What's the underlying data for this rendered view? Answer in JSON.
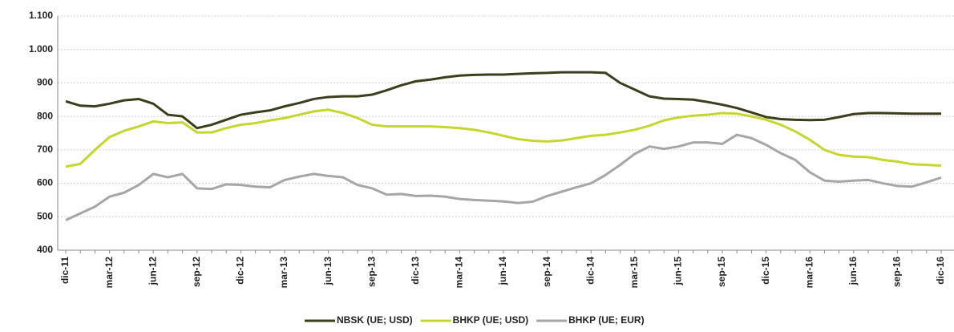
{
  "chart_data": {
    "type": "line",
    "categories": [
      "dic-11",
      null,
      null,
      "mar-12",
      null,
      null,
      "jun-12",
      null,
      null,
      "sep-12",
      null,
      null,
      "dic-12",
      null,
      null,
      "mar-13",
      null,
      null,
      "jun-13",
      null,
      null,
      "sep-13",
      null,
      null,
      "dic-13",
      null,
      null,
      "mar-14",
      null,
      null,
      "jun-14",
      null,
      null,
      "sep-14",
      null,
      null,
      "dic-14",
      null,
      null,
      "mar-15",
      null,
      null,
      "jun-15",
      null,
      null,
      "sep-15",
      null,
      null,
      "dic-15",
      null,
      null,
      "mar-16",
      null,
      null,
      "jun-16",
      null,
      null,
      "sep-16",
      null,
      null,
      "dic-16"
    ],
    "series": [
      {
        "name": "NBSK (UE; USD)",
        "color": "#3b3d1c",
        "values": [
          845,
          832,
          830,
          838,
          848,
          852,
          838,
          805,
          800,
          765,
          775,
          790,
          805,
          812,
          818,
          830,
          840,
          852,
          858,
          860,
          860,
          865,
          878,
          893,
          905,
          910,
          917,
          922,
          924,
          925,
          925,
          927,
          929,
          930,
          932,
          932,
          932,
          930,
          900,
          880,
          860,
          853,
          852,
          850,
          843,
          835,
          825,
          812,
          798,
          792,
          790,
          789,
          790,
          798,
          807,
          810,
          810,
          809,
          808,
          808,
          808
        ]
      },
      {
        "name": "BHKP (UE; USD)",
        "color": "#c5d62e",
        "values": [
          650,
          658,
          700,
          738,
          757,
          770,
          785,
          780,
          782,
          752,
          752,
          765,
          775,
          780,
          788,
          795,
          805,
          815,
          820,
          810,
          795,
          775,
          770,
          770,
          770,
          770,
          768,
          765,
          760,
          752,
          742,
          732,
          727,
          725,
          728,
          735,
          742,
          745,
          752,
          760,
          772,
          788,
          797,
          802,
          805,
          810,
          808,
          800,
          790,
          775,
          755,
          730,
          700,
          685,
          680,
          678,
          670,
          665,
          657,
          655,
          653
        ]
      },
      {
        "name": "BHKP (UE; EUR)",
        "color": "#a6a6a6",
        "values": [
          490,
          510,
          530,
          560,
          572,
          595,
          628,
          618,
          628,
          585,
          583,
          597,
          595,
          590,
          588,
          610,
          620,
          628,
          622,
          618,
          595,
          585,
          566,
          568,
          562,
          563,
          560,
          553,
          550,
          548,
          546,
          541,
          545,
          562,
          575,
          588,
          600,
          625,
          655,
          688,
          710,
          703,
          710,
          722,
          722,
          718,
          745,
          735,
          715,
          690,
          670,
          633,
          608,
          605,
          608,
          610,
          600,
          592,
          590,
          603,
          617
        ]
      }
    ],
    "ylim": [
      400,
      1100
    ],
    "yticks": [
      400,
      500,
      600,
      700,
      800,
      900,
      {
        "value": 1000,
        "label": "1.000"
      },
      {
        "value": 1100,
        "label": "1.100"
      }
    ],
    "grid": true
  }
}
